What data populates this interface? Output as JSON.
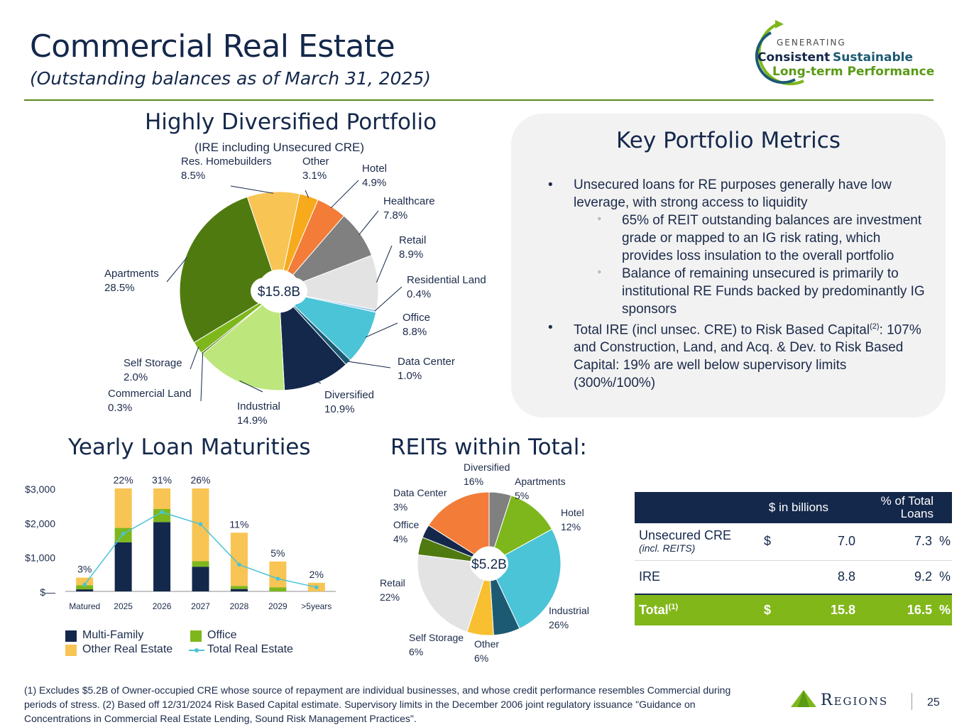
{
  "header": {
    "title": "Commercial Real Estate",
    "subtitle": "(Outstanding balances as of March 31, 2025)",
    "logo": {
      "line1": "GENERATING",
      "line2a": "Consistent",
      "line2b": "Sustainable",
      "line3": "Long-term Performance"
    }
  },
  "portfolio": {
    "heading": "Highly Diversified Portfolio",
    "subheading": "(IRE including Unsecured CRE)",
    "center_label": "$15.8B"
  },
  "metrics": {
    "heading": "Key Portfolio Metrics",
    "b1": "Unsecured loans for RE purposes generally have low leverage, with strong access to liquidity",
    "s1": "65% of REIT outstanding balances are investment grade or mapped to an IG risk rating, which provides loss insulation to the overall portfolio",
    "s2": "Balance of remaining unsecured is primarily to institutional RE Funds backed by predominantly IG sponsors",
    "b2a": "Total IRE (incl unsec. CRE) to Risk Based Capital",
    "b2sup": "(2)",
    "b2b": ": 107% and Construction, Land, and Acq. & Dev. to Risk Based Capital: 19% are well below supervisory limits (300%/100%)"
  },
  "maturities": {
    "heading": "Yearly Loan Maturities"
  },
  "reits": {
    "heading": "REITs within Total:",
    "center_label": "$5.2B"
  },
  "summary_table": {
    "col1": "$ in billions",
    "col2": "% of Total Loans",
    "rows": [
      {
        "label": "Unsecured CRE",
        "sublabel": "(incl. REITS)",
        "cur": "$",
        "value": "7.0",
        "pct": "7.3",
        "pctsign": "%"
      },
      {
        "label": "IRE",
        "sublabel": "",
        "cur": "",
        "value": "8.8",
        "pct": "9.2",
        "pctsign": "%"
      },
      {
        "label": "Total",
        "sup": "(1)",
        "cur": "$",
        "value": "15.8",
        "pct": "16.5",
        "pctsign": "%"
      }
    ]
  },
  "footnote": "(1) Excludes $5.2B of Owner-occupied CRE whose source of repayment are individual businesses, and whose credit performance resembles Commercial during periods of stress. (2) Based off 12/31/2024 Risk Based Capital estimate. Supervisory limits in the December 2006 joint regulatory issuance \"Guidance on Concentrations in Commercial Real Estate Lending, Sound Risk Management Practices\".",
  "brand": "Regions",
  "page_number": "25",
  "chart_data": [
    {
      "type": "pie",
      "subtitle": "(IRE including Unsecured CRE)",
      "center": "$15.8B",
      "slices": [
        {
          "name": "Other",
          "value": 3.1,
          "label": "3.1%",
          "color": "#f6aa1c"
        },
        {
          "name": "Hotel",
          "value": 4.9,
          "label": "4.9%",
          "color": "#f27c38"
        },
        {
          "name": "Healthcare",
          "value": 7.8,
          "label": "7.8%",
          "color": "#808080"
        },
        {
          "name": "Retail",
          "value": 8.9,
          "label": "8.9%",
          "color": "#e3e3e3"
        },
        {
          "name": "Residential Land",
          "value": 0.4,
          "label": "0.4%",
          "color": "#9ecbf0"
        },
        {
          "name": "Office",
          "value": 8.8,
          "label": "8.8%",
          "color": "#4ac4d6"
        },
        {
          "name": "Data Center",
          "value": 1.0,
          "label": "1.0%",
          "color": "#1c5a73"
        },
        {
          "name": "Diversified",
          "value": 10.9,
          "label": "10.9%",
          "color": "#14284b"
        },
        {
          "name": "Industrial",
          "value": 14.9,
          "label": "14.9%",
          "color": "#bde67d"
        },
        {
          "name": "Commercial Land",
          "value": 0.3,
          "label": "0.3%",
          "color": "#4f7a14"
        },
        {
          "name": "Self Storage",
          "value": 2.0,
          "label": "2.0%",
          "color": "#7eb71c"
        },
        {
          "name": "Apartments",
          "value": 28.5,
          "label": "28.5%",
          "color": "#4f7a10"
        },
        {
          "name": "Res. Homebuilders",
          "value": 8.5,
          "label": "8.5%",
          "color": "#f8c453"
        }
      ]
    },
    {
      "type": "bar",
      "title": "Yearly Loan Maturities",
      "stacked": true,
      "categories": [
        "Matured",
        "2025",
        "2026",
        "2027",
        "2028",
        "2029",
        ">5years"
      ],
      "y_ticks": [
        "$3,000",
        "$2,000",
        "$1,000",
        "$—"
      ],
      "ylim": [
        0,
        3000
      ],
      "series": [
        {
          "name": "Multi-Family",
          "color": "#14284b",
          "values": [
            60,
            1430,
            2020,
            720,
            70,
            0,
            0
          ]
        },
        {
          "name": "Office",
          "color": "#7eb71c",
          "values": [
            120,
            420,
            380,
            160,
            90,
            120,
            0
          ]
        },
        {
          "name": "Other Real Estate",
          "color": "#f8c453",
          "values": [
            220,
            1150,
            600,
            2120,
            1550,
            750,
            250
          ]
        }
      ],
      "line": {
        "name": "Total Real Estate",
        "color": "#4ac4d6",
        "values": [
          200,
          1680,
          2310,
          1960,
          780,
          370,
          120
        ]
      },
      "bar_labels": [
        "3%",
        "22%",
        "31%",
        "26%",
        "11%",
        "5%",
        "2%"
      ]
    },
    {
      "type": "pie",
      "title": "REITs within Total:",
      "center": "$5.2B",
      "slices": [
        {
          "name": "Apartments",
          "value": 5,
          "label": "5%",
          "color": "#808080"
        },
        {
          "name": "Hotel",
          "value": 12,
          "label": "12%",
          "color": "#7eb71c"
        },
        {
          "name": "Industrial",
          "value": 26,
          "label": "26%",
          "color": "#4ac4d6"
        },
        {
          "name": "Other",
          "value": 6,
          "label": "6%",
          "color": "#1c5a73"
        },
        {
          "name": "Self Storage",
          "value": 6,
          "label": "6%",
          "color": "#f8c030"
        },
        {
          "name": "Retail",
          "value": 22,
          "label": "22%",
          "color": "#e3e3e3"
        },
        {
          "name": "Office",
          "value": 4,
          "label": "4%",
          "color": "#4f7a10"
        },
        {
          "name": "Data Center",
          "value": 3,
          "label": "3%",
          "color": "#14284b"
        },
        {
          "name": "Diversified",
          "value": 16,
          "label": "16%",
          "color": "#f27c38"
        }
      ]
    }
  ]
}
